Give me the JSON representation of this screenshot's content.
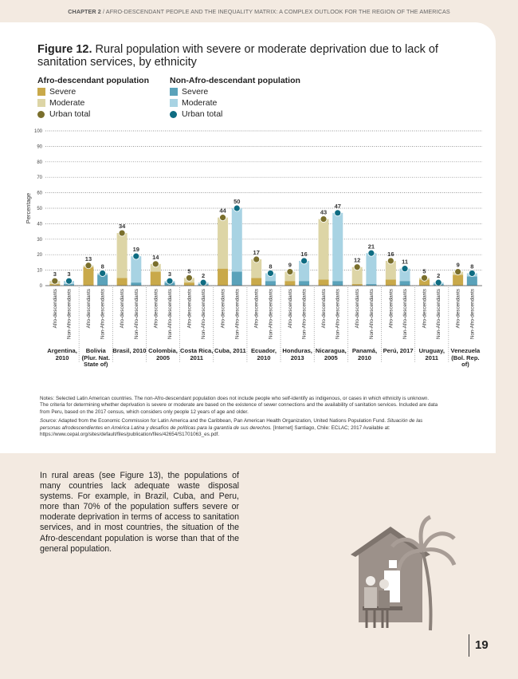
{
  "header": {
    "chapter": "CHAPTER 2",
    "title": "/ AFRO-DESCENDANT PEOPLE AND THE INEQUALITY MATRIX: A COMPLEX OUTLOOK FOR THE REGION OF THE AMERICAS"
  },
  "figure": {
    "label": "Figure 12.",
    "title": "Rural population with severe or moderate deprivation due to lack of sanitation services, by ethnicity"
  },
  "chart_data": {
    "type": "bar",
    "stacked": true,
    "y_label": "Percentage",
    "ylim": [
      0,
      100
    ],
    "yticks": [
      0,
      10,
      20,
      30,
      40,
      50,
      60,
      70,
      80,
      90,
      100
    ],
    "grid": true,
    "categories": [
      "Argentina, 2010",
      "Bolivia (Plur. Nat. State of)",
      "Brasil, 2010",
      "Colombia, 2005",
      "Costa Rica, 2011",
      "Cuba, 2011",
      "Ecuador, 2010",
      "Honduras, 2013",
      "Nicaragua, 2005",
      "Panamá, 2010",
      "Perú, 2017",
      "Uruguay, 2011",
      "Venezuela (Bol. Rep. of)"
    ],
    "groups": [
      {
        "name": "Afro-descendant population",
        "label": "Afro-descendants",
        "series": [
          {
            "name": "Severe",
            "color": "#c9a94a",
            "values": [
              1,
              12,
              5,
              9,
              2,
              11,
              5,
              3,
              4,
              1,
              4,
              4,
              7
            ]
          },
          {
            "name": "Moderate",
            "color": "#ddd5a6",
            "values": [
              2,
              1,
              29,
              5,
              3,
              33,
              12,
              6,
              39,
              11,
              12,
              1,
              2
            ]
          },
          {
            "name": "Urban total",
            "color": "#7a6f2c",
            "marker": "dot",
            "values": [
              3,
              13,
              34,
              14,
              5,
              44,
              17,
              9,
              43,
              12,
              16,
              5,
              9
            ]
          }
        ]
      },
      {
        "name": "Non-Afro-descendant population",
        "label": "Non-Afro-descendants",
        "series": [
          {
            "name": "Severe",
            "color": "#5aa2ba",
            "values": [
              1,
              7,
              2,
              2,
              1,
              9,
              3,
              3,
              3,
              1,
              3,
              1,
              6
            ]
          },
          {
            "name": "Moderate",
            "color": "#a8d3e3",
            "values": [
              2,
              1,
              17,
              1,
              1,
              41,
              5,
              13,
              44,
              20,
              8,
              1,
              2
            ]
          },
          {
            "name": "Urban total",
            "color": "#0e6c82",
            "marker": "dot",
            "values": [
              3,
              8,
              19,
              3,
              2,
              50,
              8,
              16,
              47,
              21,
              11,
              2,
              8
            ]
          }
        ]
      }
    ]
  },
  "notes": {
    "text": "Notes: Selected Latin American countries. The non-Afro-descendant population does not include people who self-identify as indigenous, or cases in which ethnicity is unknown. The criteria for determining whether deprivation is severe or moderate are based on the existence of sewer connections and the availability of sanitation services. Included are data from Peru, based on the 2017 census, which considers only people 12 years of age and older.",
    "source_label": "Source:",
    "source_text": " Adapted from the Economic Commission for Latin America and the Caribbean, Pan American Health Organization, United Nations Population Fund.",
    "source_title": "Situación de las personas afrodescendientes en América Latina y desafíos de políticas para la garantía de sus derechos.",
    "source_rest": " [Internet] Santiago, Chile: ECLAC; 2017 Available at: https://www.cepal.org/sites/default/files/publication/files/42654/S1701063_es.pdf."
  },
  "body": "In rural areas (see Figure 13), the populations of many countries lack adequate waste disposal systems. For example, in Brazil, Cuba, and Peru, more than 70% of the population suffers severe or moderate deprivation in terms of access to sanitation services, and in most countries, the situation of the Afro-descendant population is worse than that of the general population.",
  "page_number": "19"
}
